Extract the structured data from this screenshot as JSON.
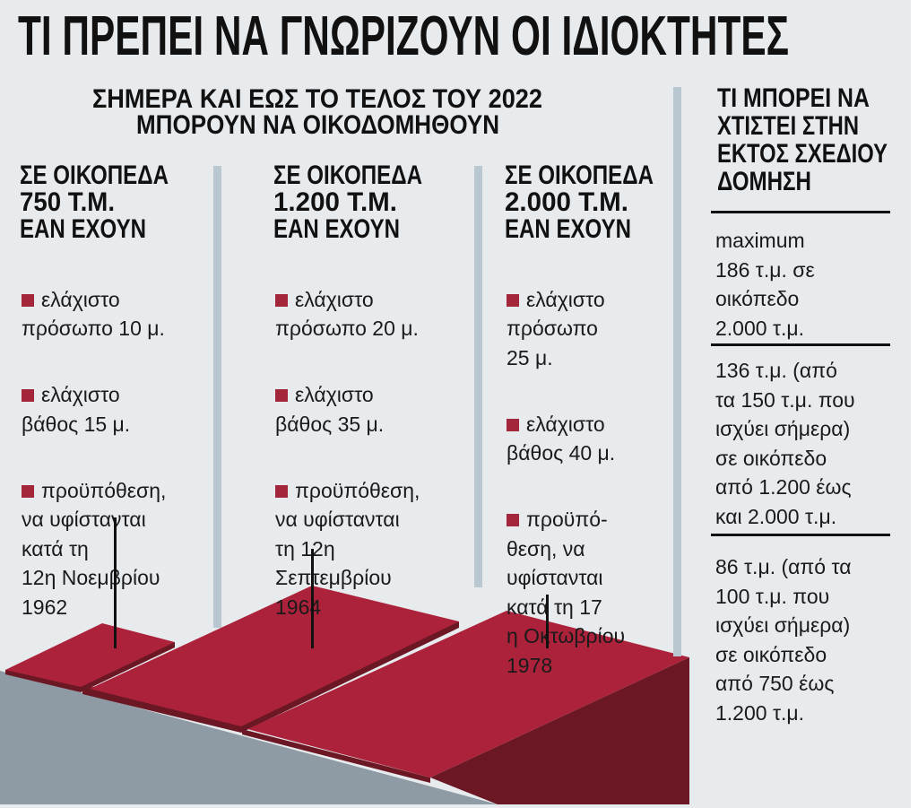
{
  "title": "ΤΙ ΠΡΕΠΕΙ ΝΑ ΓΝΩΡΙΖΟΥΝ ΟΙ ΙΔΙΟΚΤΗΤΕΣ",
  "subtitle": [
    "ΣΗΜΕΡΑ ΚΑΙ ΕΩΣ ΤΟ ΤΕΛΟΣ ΤΟΥ 2022",
    "ΜΠΟΡΟΥΝ ΝΑ ΟΙΚΟΔΟΜΗΘΟΥΝ"
  ],
  "columns": [
    {
      "heading": [
        "ΣΕ ΟΙΚΟΠΕΔΑ",
        "750 Τ.Μ.",
        "ΕΑΝ ΕΧΟΥΝ"
      ],
      "bullets": [
        "ελάχιστο\nπρόσωπο 10 μ.",
        "ελάχιστο\nβάθος 15 μ.",
        "προϋπόθεση,\nνα υφίστανται\nκατά τη\n12η Νοεμβρίου\n1962"
      ]
    },
    {
      "heading": [
        "ΣΕ ΟΙΚΟΠΕΔΑ",
        "1.200 Τ.Μ.",
        "ΕΑΝ ΕΧΟΥΝ"
      ],
      "bullets": [
        "ελάχιστο\nπρόσωπο 20 μ.",
        "ελάχιστο\nβάθος 35 μ.",
        "προϋπόθεση,\nνα υφίστανται\nτη 12η\nΣεπτεμβρίου\n1964"
      ]
    },
    {
      "heading": [
        "ΣΕ ΟΙΚΟΠΕΔΑ",
        "2.000 Τ.Μ.",
        "ΕΑΝ ΕΧΟΥΝ"
      ],
      "bullets": [
        "ελάχιστο\nπρόσωπο\n25 μ.",
        "ελάχιστο\nβάθος 40 μ.",
        "προϋπό-\nθεση, να\nυφίστανται\nκατά τη 17\nη Οκτωβρίου\n1978"
      ]
    }
  ],
  "sidebar": {
    "heading": [
      "ΤΙ ΜΠΟΡΕΙ ΝΑ",
      "ΧΤΙΣΤΕΙ ΣΤΗΝ",
      "ΕΚΤΟΣ ΣΧΕΔΙΟΥ",
      "ΔΟΜΗΣΗ"
    ],
    "items": [
      "maximum\n186 τ.μ. σε\nοικόπεδο\n2.000 τ.μ.",
      "136 τ.μ. (από\nτα 150 τ.μ. που\nισχύει σήμερα)\nσε οικόπεδο\nαπό 1.200 έως\nκαι 2.000 τ.μ.",
      "86 τ.μ. (από τα\n100 τ.μ. που\nισχύει σήμερα)\nσε οικόπεδο\nαπό 750 έως\n1.200 τ.μ."
    ]
  },
  "colors": {
    "background": "#e7ebee",
    "plot_red": "#ad223b",
    "plot_dark": "#6b1824",
    "ground": "#8f9ba4",
    "separator": "#b8c7d0",
    "bullet": "#a3263b"
  },
  "icons": {
    "bullet": "red-square"
  }
}
